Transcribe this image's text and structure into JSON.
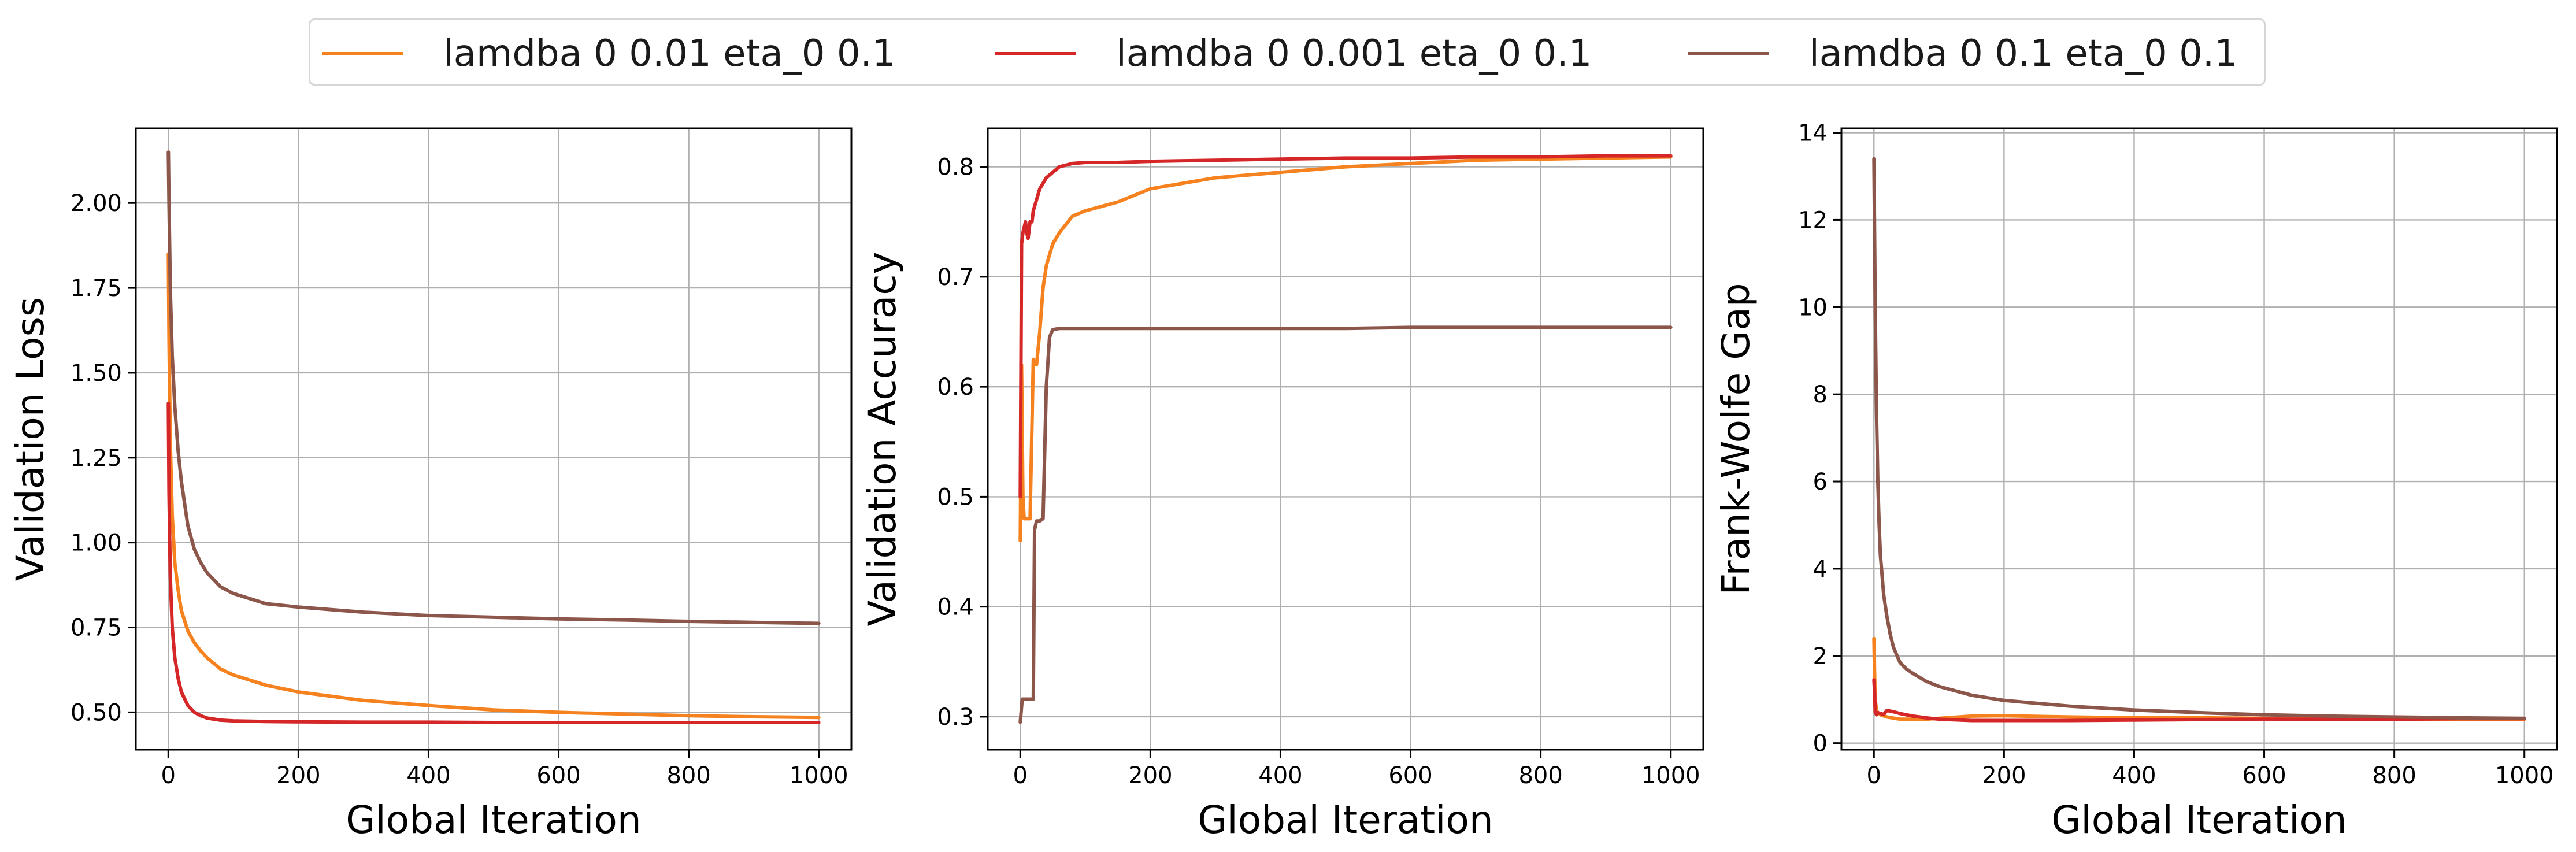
{
  "legend": {
    "entries": [
      {
        "label": "lamdba 0 0.01 eta_0 0.1",
        "color": "#f5821f"
      },
      {
        "label": "lamdba 0 0.001 eta_0 0.1",
        "color": "#d62728"
      },
      {
        "label": "lamdba 0 0.1 eta_0 0.1",
        "color": "#8c564b"
      }
    ]
  },
  "chart_data": [
    {
      "type": "line",
      "xlabel": "Global Iteration",
      "ylabel": "Validation Loss",
      "xlim": [
        -50,
        1050
      ],
      "ylim": [
        0.39,
        2.22
      ],
      "xticks": [
        0,
        200,
        400,
        600,
        800,
        1000
      ],
      "yticks": [
        0.5,
        0.75,
        1.0,
        1.25,
        1.5,
        1.75,
        2.0
      ],
      "ytick_labels": [
        "0.50",
        "0.75",
        "1.00",
        "1.25",
        "1.50",
        "1.75",
        "2.00"
      ],
      "grid": true,
      "series": [
        {
          "name": "lamdba 0 0.01 eta_0 0.1",
          "color": "#f5821f",
          "x": [
            0,
            1,
            3,
            6,
            10,
            15,
            20,
            30,
            40,
            50,
            60,
            80,
            100,
            150,
            200,
            300,
            400,
            500,
            600,
            700,
            800,
            900,
            1000
          ],
          "y": [
            1.85,
            1.6,
            1.3,
            1.08,
            0.94,
            0.86,
            0.8,
            0.74,
            0.705,
            0.68,
            0.66,
            0.628,
            0.61,
            0.58,
            0.56,
            0.535,
            0.52,
            0.507,
            0.5,
            0.495,
            0.49,
            0.487,
            0.485
          ]
        },
        {
          "name": "lamdba 0 0.001 eta_0 0.1",
          "color": "#d62728",
          "x": [
            0,
            1,
            3,
            6,
            10,
            15,
            20,
            30,
            40,
            50,
            60,
            80,
            100,
            150,
            200,
            300,
            400,
            500,
            600,
            700,
            800,
            900,
            1000
          ],
          "y": [
            1.41,
            1.15,
            0.9,
            0.75,
            0.66,
            0.6,
            0.56,
            0.52,
            0.5,
            0.49,
            0.483,
            0.477,
            0.475,
            0.473,
            0.472,
            0.471,
            0.471,
            0.47,
            0.47,
            0.47,
            0.47,
            0.47,
            0.47
          ]
        },
        {
          "name": "lamdba 0 0.1 eta_0 0.1",
          "color": "#8c564b",
          "x": [
            0,
            1,
            3,
            6,
            10,
            15,
            20,
            30,
            40,
            50,
            60,
            80,
            100,
            150,
            200,
            300,
            400,
            500,
            600,
            700,
            800,
            900,
            1000
          ],
          "y": [
            2.15,
            2.0,
            1.75,
            1.55,
            1.4,
            1.27,
            1.18,
            1.05,
            0.98,
            0.94,
            0.91,
            0.87,
            0.85,
            0.82,
            0.81,
            0.795,
            0.785,
            0.78,
            0.775,
            0.772,
            0.768,
            0.765,
            0.762
          ]
        }
      ]
    },
    {
      "type": "line",
      "xlabel": "Global Iteration",
      "ylabel": "Validation Accuracy",
      "xlim": [
        -50,
        1050
      ],
      "ylim": [
        0.27,
        0.835
      ],
      "xticks": [
        0,
        200,
        400,
        600,
        800,
        1000
      ],
      "yticks": [
        0.3,
        0.4,
        0.5,
        0.6,
        0.7,
        0.8
      ],
      "ytick_labels": [
        "0.3",
        "0.4",
        "0.5",
        "0.6",
        "0.7",
        "0.8"
      ],
      "grid": true,
      "series": [
        {
          "name": "lamdba 0 0.01 eta_0 0.1",
          "color": "#f5821f",
          "x": [
            0,
            2,
            4,
            6,
            10,
            15,
            20,
            25,
            30,
            35,
            40,
            50,
            60,
            80,
            100,
            150,
            200,
            300,
            400,
            500,
            600,
            700,
            800,
            900,
            1000
          ],
          "y": [
            0.46,
            0.62,
            0.5,
            0.48,
            0.48,
            0.48,
            0.625,
            0.62,
            0.65,
            0.69,
            0.71,
            0.73,
            0.74,
            0.755,
            0.76,
            0.768,
            0.78,
            0.79,
            0.795,
            0.8,
            0.803,
            0.806,
            0.807,
            0.808,
            0.809
          ]
        },
        {
          "name": "lamdba 0 0.001 eta_0 0.1",
          "color": "#d62728",
          "x": [
            0,
            2,
            4,
            6,
            8,
            10,
            12,
            15,
            18,
            20,
            25,
            30,
            40,
            50,
            60,
            80,
            100,
            150,
            200,
            300,
            400,
            500,
            600,
            700,
            800,
            900,
            1000
          ],
          "y": [
            0.5,
            0.73,
            0.74,
            0.745,
            0.75,
            0.74,
            0.735,
            0.75,
            0.75,
            0.76,
            0.77,
            0.78,
            0.79,
            0.795,
            0.8,
            0.803,
            0.804,
            0.804,
            0.805,
            0.806,
            0.807,
            0.808,
            0.808,
            0.809,
            0.809,
            0.81,
            0.81
          ]
        },
        {
          "name": "lamdba 0 0.1 eta_0 0.1",
          "color": "#8c564b",
          "x": [
            0,
            3,
            6,
            10,
            15,
            20,
            22,
            25,
            30,
            35,
            40,
            45,
            50,
            60,
            80,
            100,
            200,
            300,
            400,
            500,
            600,
            700,
            800,
            900,
            1000
          ],
          "y": [
            0.295,
            0.316,
            0.316,
            0.316,
            0.316,
            0.316,
            0.47,
            0.478,
            0.478,
            0.48,
            0.6,
            0.645,
            0.652,
            0.653,
            0.653,
            0.653,
            0.653,
            0.653,
            0.653,
            0.653,
            0.654,
            0.654,
            0.654,
            0.654,
            0.654
          ]
        }
      ]
    },
    {
      "type": "line",
      "xlabel": "Global Iteration",
      "ylabel": "Frank-Wolfe Gap",
      "xlim": [
        -50,
        1050
      ],
      "ylim": [
        -0.15,
        14.1
      ],
      "xticks": [
        0,
        200,
        400,
        600,
        800,
        1000
      ],
      "yticks": [
        0,
        2,
        4,
        6,
        8,
        10,
        12,
        14
      ],
      "ytick_labels": [
        "0",
        "2",
        "4",
        "6",
        "8",
        "10",
        "12",
        "14"
      ],
      "grid": true,
      "series": [
        {
          "name": "lamdba 0 0.01 eta_0 0.1",
          "color": "#f5821f",
          "x": [
            0,
            1,
            2,
            4,
            6,
            10,
            20,
            40,
            60,
            80,
            100,
            150,
            200,
            300,
            400,
            500,
            600,
            700,
            800,
            900,
            1000
          ],
          "y": [
            2.4,
            1.6,
            1.0,
            0.75,
            0.7,
            0.65,
            0.6,
            0.55,
            0.55,
            0.55,
            0.57,
            0.62,
            0.63,
            0.6,
            0.58,
            0.58,
            0.57,
            0.56,
            0.55,
            0.55,
            0.55
          ]
        },
        {
          "name": "lamdba 0 0.001 eta_0 0.1",
          "color": "#d62728",
          "x": [
            0,
            1,
            2,
            4,
            6,
            10,
            15,
            20,
            30,
            40,
            60,
            80,
            100,
            150,
            200,
            300,
            400,
            500,
            600,
            700,
            800,
            900,
            1000
          ],
          "y": [
            1.45,
            1.2,
            0.7,
            0.65,
            0.7,
            0.68,
            0.66,
            0.75,
            0.72,
            0.68,
            0.62,
            0.58,
            0.55,
            0.52,
            0.52,
            0.52,
            0.53,
            0.54,
            0.55,
            0.55,
            0.55,
            0.56,
            0.56
          ]
        },
        {
          "name": "lamdba 0 0.1 eta_0 0.1",
          "color": "#8c564b",
          "x": [
            0,
            2,
            4,
            6,
            8,
            10,
            15,
            20,
            25,
            30,
            40,
            50,
            60,
            80,
            100,
            150,
            200,
            300,
            400,
            500,
            600,
            700,
            800,
            900,
            1000
          ],
          "y": [
            13.4,
            10.0,
            7.5,
            6.0,
            5.0,
            4.3,
            3.4,
            2.9,
            2.5,
            2.2,
            1.85,
            1.7,
            1.6,
            1.42,
            1.3,
            1.1,
            0.98,
            0.85,
            0.76,
            0.7,
            0.65,
            0.62,
            0.6,
            0.58,
            0.57
          ]
        }
      ]
    }
  ]
}
